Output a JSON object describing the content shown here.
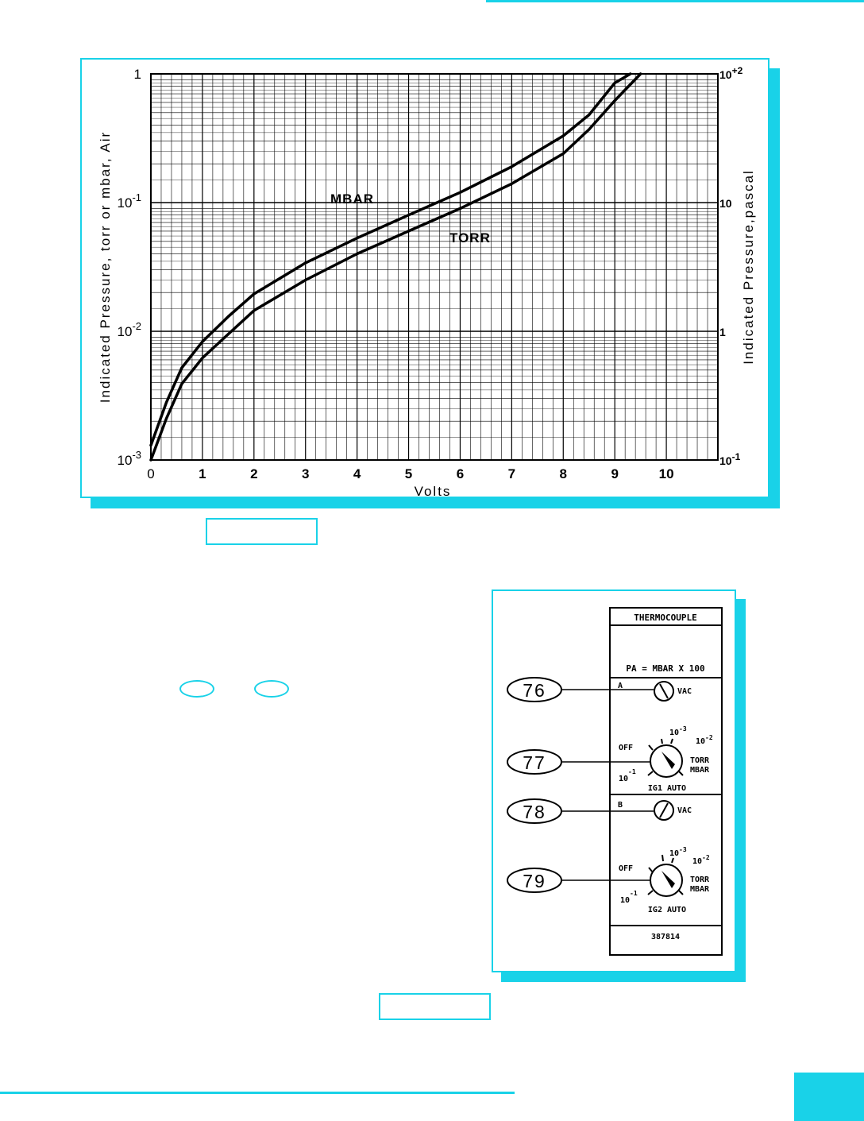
{
  "chart_data": {
    "type": "line",
    "xlabel": "Volts",
    "ylabel_left": "Indicated Pressure, torr or mbar, Air",
    "ylabel_right": "Indicated Pressure,pascal",
    "xlim": [
      0,
      11
    ],
    "ylim": [
      0.001,
      1
    ],
    "yscale": "log",
    "grid": true,
    "x_ticks": [
      "0",
      "1",
      "2",
      "3",
      "4",
      "5",
      "6",
      "7",
      "8",
      "9",
      "10"
    ],
    "y_ticks_left": [
      {
        "value": 1,
        "base": "1",
        "exp": ""
      },
      {
        "value": 0.1,
        "base": "10",
        "exp": "-1"
      },
      {
        "value": 0.01,
        "base": "10",
        "exp": "-2"
      },
      {
        "value": 0.001,
        "base": "10",
        "exp": "-3"
      }
    ],
    "y_ticks_right": [
      {
        "value": 1,
        "base": "10",
        "exp": "+2"
      },
      {
        "value": 0.1,
        "base": "10",
        "exp": ""
      },
      {
        "value": 0.01,
        "base": "1",
        "exp": ""
      },
      {
        "value": 0.001,
        "base": "10",
        "exp": "-1"
      }
    ],
    "series": [
      {
        "name": "MBAR",
        "x": [
          0,
          0.3,
          0.6,
          1.0,
          1.5,
          2.0,
          3.0,
          4.0,
          5.0,
          6.0,
          7.0,
          8.0,
          8.5,
          9.0,
          9.3
        ],
        "y": [
          0.0013,
          0.0028,
          0.0052,
          0.0083,
          0.013,
          0.0195,
          0.034,
          0.053,
          0.08,
          0.12,
          0.19,
          0.33,
          0.48,
          0.85,
          1.0
        ]
      },
      {
        "name": "TORR",
        "x": [
          0,
          0.3,
          0.6,
          1.0,
          1.5,
          2.0,
          3.0,
          4.0,
          5.0,
          6.0,
          7.0,
          8.0,
          8.5,
          9.0,
          9.5
        ],
        "y": [
          0.001,
          0.0021,
          0.0039,
          0.0062,
          0.0095,
          0.0145,
          0.025,
          0.04,
          0.06,
          0.09,
          0.14,
          0.24,
          0.37,
          0.62,
          1.0
        ]
      }
    ],
    "annotations": [
      "MBAR",
      "TORR"
    ]
  },
  "panel": {
    "title": "THERMOCOUPLE",
    "formula": "PA = MBAR X 100",
    "switch_a_label": "A",
    "switch_a_right": "VAC",
    "switch_b_label": "B",
    "switch_b_right": "VAC",
    "knob1": {
      "off": "OFF",
      "top1": "10",
      "top1_exp": "-3",
      "top2": "10",
      "top2_exp": "-2",
      "right1": "TORR",
      "right2": "MBAR",
      "left": "10",
      "left_exp": "-1",
      "bottom": "IG1 AUTO"
    },
    "knob2": {
      "off": "OFF",
      "top1": "10",
      "top1_exp": "-3",
      "top2": "10",
      "top2_exp": "-2",
      "right1": "TORR",
      "right2": "MBAR",
      "left": "10",
      "left_exp": "-1",
      "bottom": "IG2 AUTO"
    },
    "part_number": "387814",
    "callouts": [
      "76",
      "77",
      "78",
      "79"
    ]
  },
  "colors": {
    "accent": "#19d2e8"
  }
}
